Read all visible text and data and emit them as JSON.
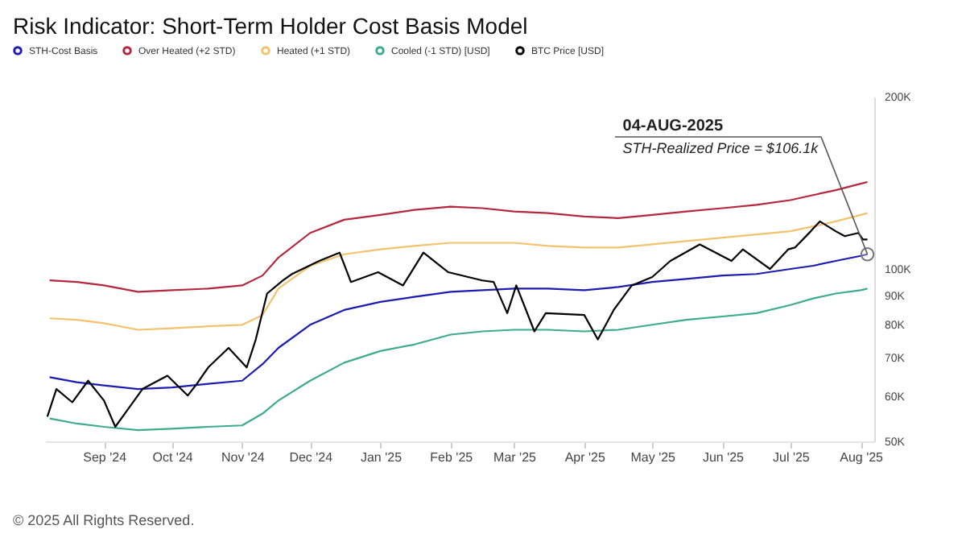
{
  "chart_data": {
    "type": "line",
    "title": "Risk Indicator: Short-Term Holder Cost Basis Model",
    "x": [
      "2024-08-08",
      "2024-08-20",
      "2024-09-01",
      "2024-09-16",
      "2024-10-01",
      "2024-10-17",
      "2024-11-01",
      "2024-11-10",
      "2024-11-17",
      "2024-12-01",
      "2024-12-16",
      "2025-01-01",
      "2025-01-16",
      "2025-02-01",
      "2025-02-15",
      "2025-03-01",
      "2025-03-16",
      "2025-04-01",
      "2025-04-16",
      "2025-05-01",
      "2025-05-16",
      "2025-06-01",
      "2025-06-16",
      "2025-07-01",
      "2025-07-11",
      "2025-07-21",
      "2025-08-01",
      "2025-08-04"
    ],
    "series": [
      {
        "name": "STH-Cost Basis",
        "color": "#1c1cb0",
        "values": [
          64.7,
          63.4,
          62.6,
          61.7,
          62.1,
          63,
          63.8,
          68.2,
          72.8,
          79.9,
          84.8,
          87.6,
          89.4,
          91.2,
          91.8,
          92.4,
          92.4,
          91.8,
          93,
          94.9,
          96.1,
          97.4,
          98,
          100,
          101.3,
          103.3,
          105.4,
          106.1
        ]
      },
      {
        "name": "Over Heated (+2 STD)",
        "color": "#b3283f",
        "values": [
          95.5,
          94.9,
          93.6,
          91.2,
          91.8,
          92.4,
          93.6,
          97.4,
          104.7,
          115.6,
          121.9,
          124.3,
          126.8,
          128.5,
          127.7,
          126,
          125.2,
          123.5,
          122.7,
          124.3,
          126,
          127.7,
          129.4,
          131.9,
          134.6,
          137.3,
          140.9,
          141.9
        ]
      },
      {
        "name": "Heated (+1 STD)",
        "color": "#f2c36f",
        "values": [
          82,
          81.5,
          80.4,
          78.3,
          78.8,
          79.4,
          79.9,
          83.1,
          92.4,
          101.3,
          106.1,
          108.2,
          109.7,
          111.1,
          111.1,
          111.1,
          109.7,
          109,
          109,
          110.4,
          111.9,
          113.4,
          114.9,
          116.4,
          118.7,
          121.1,
          124.3,
          125.2
        ]
      },
      {
        "name": "Cooled (-1 STD) [USD]",
        "color": "#3dab8e",
        "values": [
          54.8,
          53.7,
          53,
          52.3,
          52.6,
          53,
          53.3,
          55.9,
          58.9,
          63.8,
          68.6,
          71.9,
          73.8,
          76.8,
          77.8,
          78.3,
          78.3,
          77.8,
          78.3,
          79.9,
          81.5,
          82.6,
          83.7,
          86.5,
          88.8,
          90.6,
          91.8,
          92.4
        ]
      },
      {
        "name": "BTC Price [USD]",
        "color": "#000000",
        "x": [
          "2024-08-07",
          "2024-08-11",
          "2024-08-18",
          "2024-08-25",
          "2024-09-01",
          "2024-09-06",
          "2024-09-18",
          "2024-09-29",
          "2024-10-08",
          "2024-10-12",
          "2024-10-17",
          "2024-10-26",
          "2024-11-03",
          "2024-11-07",
          "2024-11-12",
          "2024-11-19",
          "2024-11-23",
          "2024-12-05",
          "2024-12-14",
          "2024-12-19",
          "2024-12-31",
          "2025-01-11",
          "2025-01-20",
          "2025-01-31",
          "2025-02-15",
          "2025-02-20",
          "2025-02-26",
          "2025-03-02",
          "2025-03-10",
          "2025-03-15",
          "2025-04-01",
          "2025-04-07",
          "2025-04-14",
          "2025-04-22",
          "2025-05-01",
          "2025-05-09",
          "2025-05-22",
          "2025-06-05",
          "2025-06-10",
          "2025-06-22",
          "2025-06-30",
          "2025-07-03",
          "2025-07-10",
          "2025-07-14",
          "2025-07-21",
          "2025-07-25",
          "2025-07-31",
          "2025-08-02",
          "2025-08-04"
        ],
        "values": [
          55.2,
          61.7,
          58.5,
          63.8,
          58.9,
          53,
          61.7,
          65.1,
          60.1,
          63,
          67.3,
          72.8,
          67.3,
          75.3,
          90.6,
          95.5,
          98,
          103.3,
          106.8,
          94.9,
          98.7,
          93.6,
          106.8,
          98.7,
          95.5,
          94.9,
          83.7,
          93.6,
          77.8,
          83.7,
          83.1,
          75.3,
          84.8,
          93.6,
          96.8,
          103.3,
          110.4,
          103.3,
          108.2,
          100,
          108.2,
          109,
          116.4,
          121.1,
          116.4,
          114.1,
          115.6,
          112.6,
          112.6
        ]
      }
    ],
    "xlim": [
      "2024-08-06",
      "2025-08-07"
    ],
    "xticks": [
      {
        "value": "2024-09-01",
        "label": "Sep '24"
      },
      {
        "value": "2024-10-01",
        "label": "Oct '24"
      },
      {
        "value": "2024-11-01",
        "label": "Nov '24"
      },
      {
        "value": "2024-12-01",
        "label": "Dec '24"
      },
      {
        "value": "2025-01-01",
        "label": "Jan '25"
      },
      {
        "value": "2025-02-01",
        "label": "Feb '25"
      },
      {
        "value": "2025-03-01",
        "label": "Mar '25"
      },
      {
        "value": "2025-04-01",
        "label": "Apr '25"
      },
      {
        "value": "2025-05-01",
        "label": "May '25"
      },
      {
        "value": "2025-06-01",
        "label": "Jun '25"
      },
      {
        "value": "2025-07-01",
        "label": "Jul '25"
      },
      {
        "value": "2025-08-01",
        "label": "Aug '25"
      }
    ],
    "ylim": [
      50,
      200
    ],
    "log": true,
    "yticks": [
      {
        "value": 50,
        "label": "50K"
      },
      {
        "value": 60,
        "label": "60K"
      },
      {
        "value": 70,
        "label": "70K"
      },
      {
        "value": 80,
        "label": "80K"
      },
      {
        "value": 90,
        "label": "90K"
      },
      {
        "value": 100,
        "label": "100K"
      },
      {
        "value": 200,
        "label": "200K"
      }
    ],
    "grid": false,
    "legend": "top left",
    "marker": "none",
    "line_style": "solid",
    "annotations": [
      "04-AUG-2025",
      {
        "text": "STH-Realized Price = $106.1k",
        "x": "2025-08-04",
        "y": 106.1
      },
      "© 2025 All Rights Reserved."
    ]
  }
}
